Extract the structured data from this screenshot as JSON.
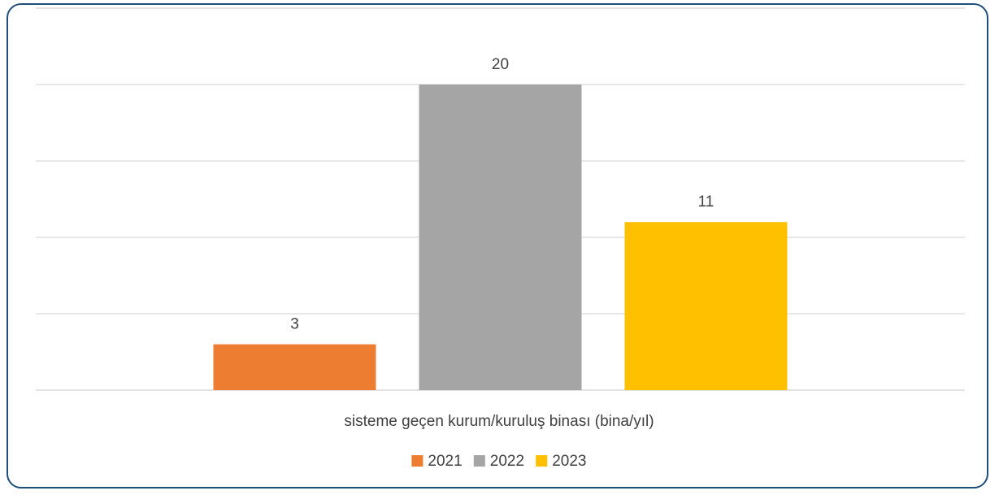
{
  "chart_data": {
    "type": "bar",
    "categories": [
      "sisteme geçen kurum/kuruluş binası (bina/yıl)"
    ],
    "series": [
      {
        "name": "2021",
        "values": [
          3
        ],
        "color": "#ED7D31"
      },
      {
        "name": "2022",
        "values": [
          20
        ],
        "color": "#A5A5A5"
      },
      {
        "name": "2023",
        "values": [
          11
        ],
        "color": "#FFC000"
      }
    ],
    "xlabel": "sisteme geçen kurum/kuruluş binası (bina/yıl)",
    "ylim": [
      0,
      20
    ],
    "grid": true,
    "legend_position": "bottom",
    "data_labels": true
  }
}
